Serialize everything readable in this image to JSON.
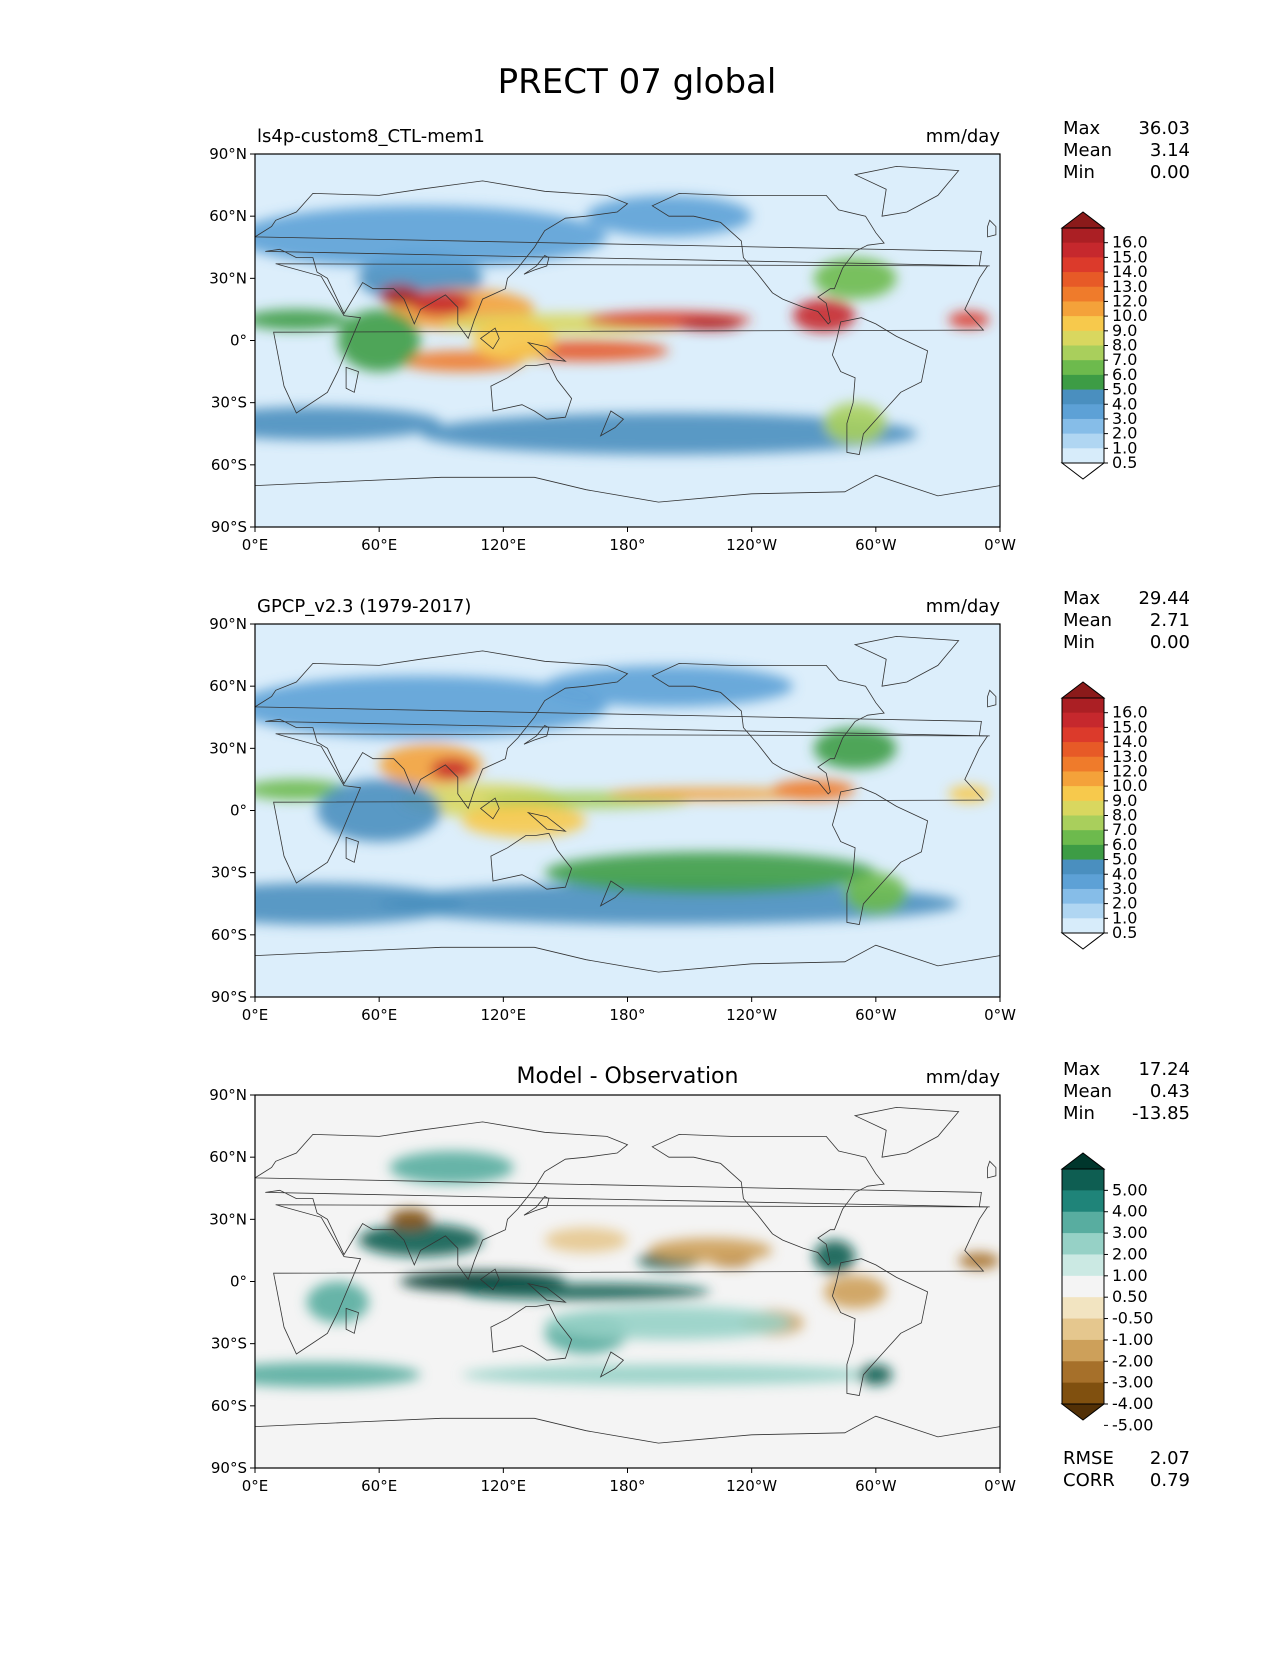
{
  "figure": {
    "title": "PRECT 07 global"
  },
  "axes": {
    "lat_ticks": [
      "90°N",
      "60°N",
      "30°N",
      "0°",
      "30°S",
      "60°S",
      "90°S"
    ],
    "lon_ticks": [
      "0°E",
      "60°E",
      "120°E",
      "180°",
      "120°W",
      "60°W",
      "0°W"
    ]
  },
  "panels": [
    {
      "title_left": "ls4p-custom8_CTL-mem1",
      "title_center": "",
      "units": "mm/day",
      "stats": [
        {
          "label": "Max",
          "value": "36.03"
        },
        {
          "label": "Mean",
          "value": "3.14"
        },
        {
          "label": "Min",
          "value": "0.00"
        }
      ],
      "colorbar": {
        "type": "sequential",
        "labels": [
          "16.0",
          "15.0",
          "14.0",
          "13.0",
          "12.0",
          "10.0",
          "9.0",
          "8.0",
          "7.0",
          "6.0",
          "5.0",
          "4.0",
          "3.0",
          "2.0",
          "1.0",
          "0.5"
        ],
        "colors": [
          "#8b1a1a",
          "#ab1f24",
          "#c6282d",
          "#dc3a2b",
          "#e75a27",
          "#ef7b2b",
          "#f4a23a",
          "#f7c94c",
          "#d9d75f",
          "#a9cf5c",
          "#6dba4d",
          "#3d9c45",
          "#4a8fbf",
          "#5da1d6",
          "#86bde8",
          "#b0d6f2",
          "#d7ecfa",
          "#ffffff"
        ]
      },
      "extra_stats": []
    },
    {
      "title_left": "GPCP_v2.3 (1979-2017)",
      "title_center": "",
      "units": "mm/day",
      "stats": [
        {
          "label": "Max",
          "value": "29.44"
        },
        {
          "label": "Mean",
          "value": "2.71"
        },
        {
          "label": "Min",
          "value": "0.00"
        }
      ],
      "colorbar": {
        "type": "sequential",
        "labels": [
          "16.0",
          "15.0",
          "14.0",
          "13.0",
          "12.0",
          "10.0",
          "9.0",
          "8.0",
          "7.0",
          "6.0",
          "5.0",
          "4.0",
          "3.0",
          "2.0",
          "1.0",
          "0.5"
        ],
        "colors": [
          "#8b1a1a",
          "#ab1f24",
          "#c6282d",
          "#dc3a2b",
          "#e75a27",
          "#ef7b2b",
          "#f4a23a",
          "#f7c94c",
          "#d9d75f",
          "#a9cf5c",
          "#6dba4d",
          "#3d9c45",
          "#4a8fbf",
          "#5da1d6",
          "#86bde8",
          "#b0d6f2",
          "#d7ecfa",
          "#ffffff"
        ]
      },
      "extra_stats": []
    },
    {
      "title_left": "",
      "title_center": "Model - Observation",
      "units": "mm/day",
      "stats": [
        {
          "label": "Max",
          "value": "17.24"
        },
        {
          "label": "Mean",
          "value": "0.43"
        },
        {
          "label": "Min",
          "value": "-13.85"
        }
      ],
      "colorbar": {
        "type": "diverging",
        "labels": [
          "5.00",
          "4.00",
          "3.00",
          "2.00",
          "1.00",
          "0.50",
          "-0.50",
          "-1.00",
          "-2.00",
          "-3.00",
          "-4.00",
          "-5.00"
        ],
        "colors": [
          "#00362c",
          "#0e5e52",
          "#1f8479",
          "#58ada0",
          "#96d1c6",
          "#cbe9e3",
          "#f4f4f4",
          "#f2e4c1",
          "#e5c78e",
          "#cda05a",
          "#a6702a",
          "#80500f",
          "#523006"
        ]
      },
      "extra_stats": [
        {
          "label": "RMSE",
          "value": "2.07"
        },
        {
          "label": "CORR",
          "value": "0.79"
        }
      ]
    }
  ],
  "colors": {
    "frame": "#000000",
    "land_outline": "#333333",
    "diff_background": "#f4f4f4",
    "clim_background": "#dceefb"
  }
}
